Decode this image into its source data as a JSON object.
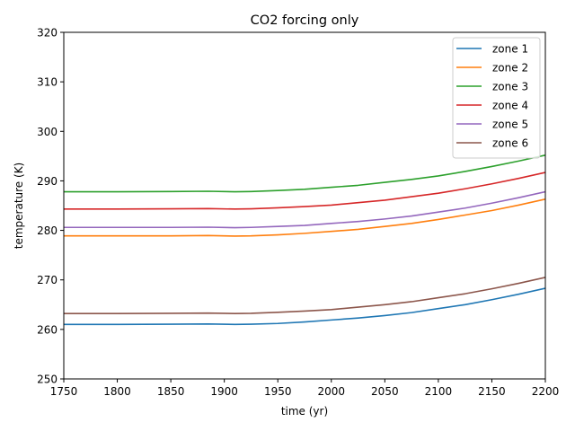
{
  "chart_data": {
    "type": "line",
    "title": "CO2 forcing only",
    "xlabel": "time (yr)",
    "ylabel": "temperature (K)",
    "xlim": [
      1750,
      2200
    ],
    "ylim": [
      250,
      320
    ],
    "xticks": [
      1750,
      1800,
      1850,
      1900,
      1950,
      2000,
      2050,
      2100,
      2150,
      2200
    ],
    "yticks": [
      250,
      260,
      270,
      280,
      290,
      300,
      310,
      320
    ],
    "x": [
      1750,
      1800,
      1850,
      1885,
      1910,
      1925,
      1950,
      1975,
      2000,
      2025,
      2050,
      2075,
      2100,
      2125,
      2150,
      2175,
      2200
    ],
    "series": [
      {
        "name": "zone 1",
        "color": "#1f77b4",
        "values": [
          261.0,
          261.0,
          261.05,
          261.1,
          261.0,
          261.05,
          261.2,
          261.5,
          261.9,
          262.3,
          262.8,
          263.4,
          264.2,
          265.0,
          266.0,
          267.1,
          268.3
        ]
      },
      {
        "name": "zone 2",
        "color": "#ff7f0e",
        "values": [
          278.9,
          278.9,
          278.9,
          278.95,
          278.85,
          278.9,
          279.1,
          279.4,
          279.8,
          280.2,
          280.8,
          281.4,
          282.2,
          283.1,
          284.0,
          285.1,
          286.3
        ]
      },
      {
        "name": "zone 3",
        "color": "#2ca02c",
        "values": [
          287.8,
          287.8,
          287.85,
          287.9,
          287.8,
          287.85,
          288.05,
          288.3,
          288.7,
          289.1,
          289.7,
          290.3,
          291.0,
          291.9,
          292.9,
          294.0,
          295.2
        ]
      },
      {
        "name": "zone 4",
        "color": "#d62728",
        "values": [
          284.3,
          284.3,
          284.35,
          284.4,
          284.3,
          284.35,
          284.55,
          284.8,
          285.1,
          285.6,
          286.1,
          286.8,
          287.5,
          288.4,
          289.4,
          290.5,
          291.7
        ]
      },
      {
        "name": "zone 5",
        "color": "#9467bd",
        "values": [
          280.6,
          280.6,
          280.6,
          280.65,
          280.55,
          280.6,
          280.8,
          281.0,
          281.4,
          281.8,
          282.3,
          282.9,
          283.7,
          284.5,
          285.5,
          286.6,
          287.8
        ]
      },
      {
        "name": "zone 6",
        "color": "#8c564b",
        "values": [
          263.2,
          263.2,
          263.25,
          263.3,
          263.2,
          263.25,
          263.45,
          263.7,
          264.0,
          264.5,
          265.0,
          265.6,
          266.4,
          267.2,
          268.2,
          269.3,
          270.5
        ]
      }
    ],
    "legend_position": "top-right",
    "grid": false
  }
}
